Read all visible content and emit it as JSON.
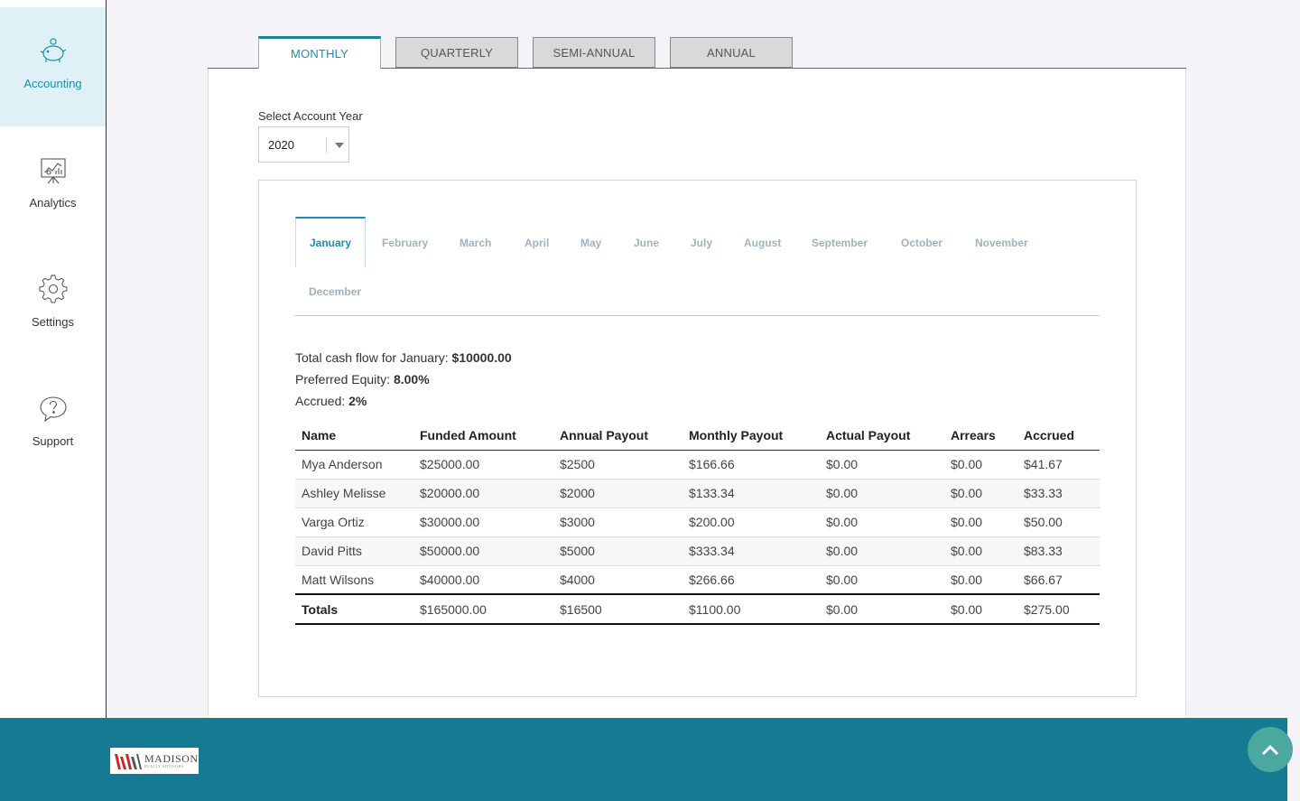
{
  "sidebar": {
    "items": [
      {
        "label": "Accounting",
        "icon": "piggy-bank-icon",
        "active": true
      },
      {
        "label": "Analytics",
        "icon": "presentation-chart-icon",
        "active": false
      },
      {
        "label": "Settings",
        "icon": "gear-icon",
        "active": false
      },
      {
        "label": "Support",
        "icon": "help-bubble-icon",
        "active": false
      }
    ]
  },
  "period_tabs": [
    "MONTHLY",
    "QUARTERLY",
    "SEMI-ANNUAL",
    "ANNUAL"
  ],
  "active_period": "MONTHLY",
  "year_select": {
    "label": "Select Account Year",
    "value": "2020"
  },
  "months": [
    "January",
    "February",
    "March",
    "April",
    "May",
    "June",
    "July",
    "August",
    "September",
    "October",
    "November",
    "December"
  ],
  "active_month": "January",
  "summary": {
    "cash_flow_label": "Total cash flow for January:",
    "cash_flow_value": "$10000.00",
    "equity_label": "Preferred Equity:",
    "equity_value": "8.00%",
    "accrued_label": "Accrued:",
    "accrued_value": "2%"
  },
  "table": {
    "headers": [
      "Name",
      "Funded Amount",
      "Annual Payout",
      "Monthly Payout",
      "Actual Payout",
      "Arrears",
      "Accrued"
    ],
    "rows": [
      [
        "Mya Anderson",
        "$25000.00",
        "$2500",
        "$166.66",
        "$0.00",
        "$0.00",
        "$41.67"
      ],
      [
        "Ashley Melisse",
        "$20000.00",
        "$2000",
        "$133.34",
        "$0.00",
        "$0.00",
        "$33.33"
      ],
      [
        "Varga Ortiz",
        "$30000.00",
        "$3000",
        "$200.00",
        "$0.00",
        "$0.00",
        "$50.00"
      ],
      [
        "David Pitts",
        "$50000.00",
        "$5000",
        "$333.34",
        "$0.00",
        "$0.00",
        "$83.33"
      ],
      [
        "Matt Wilsons",
        "$40000.00",
        "$4000",
        "$266.66",
        "$0.00",
        "$0.00",
        "$66.67"
      ]
    ],
    "totals": [
      "Totals",
      "$165000.00",
      "$16500",
      "$1100.00",
      "$0.00",
      "$0.00",
      "$275.00"
    ]
  },
  "footer": {
    "logo_text": "MADISON",
    "logo_subtext": "REALTY ADVISORS",
    "scroll_top_icon": "chevron-up-icon"
  },
  "colors": {
    "accent": "#1b8fb0",
    "footer": "#147b92",
    "active_side": "#dff1f6",
    "scroll_btn": "#4aa8a0"
  }
}
